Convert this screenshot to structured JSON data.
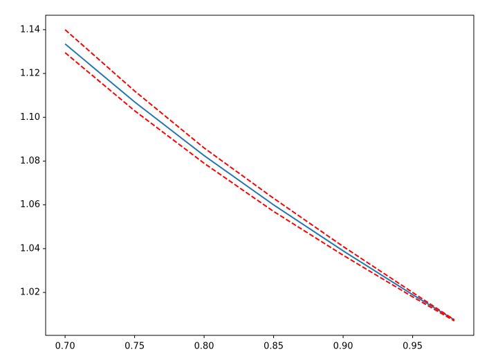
{
  "chart_data": {
    "type": "line",
    "x": [
      0.7,
      0.75,
      0.8,
      0.85,
      0.9,
      0.95,
      0.98
    ],
    "series": [
      {
        "color": "#1f77b4",
        "style": "solid",
        "values": [
          1.1335,
          1.107,
          1.0825,
          1.06,
          1.039,
          1.019,
          1.0075
        ]
      },
      {
        "color": "#ff0000",
        "style": "dashed",
        "values": [
          1.14,
          1.112,
          1.086,
          1.063,
          1.041,
          1.02,
          1.0075
        ]
      },
      {
        "color": "#ff0000",
        "style": "dashed",
        "values": [
          1.1295,
          1.103,
          1.079,
          1.057,
          1.037,
          1.018,
          1.007
        ]
      }
    ],
    "xlim": [
      0.686,
      0.994
    ],
    "xticks": [
      {
        "value": 0.7,
        "label": "0.70"
      },
      0.75,
      {
        "value": 0.8,
        "label": "0.80"
      },
      0.85,
      {
        "value": 0.9,
        "label": "0.90"
      },
      0.95
    ],
    "ylim": [
      1.0004,
      1.1466
    ],
    "yticks": [
      1.02,
      1.04,
      1.06,
      1.08,
      {
        "value": 1.1,
        "label": "1.10"
      },
      1.12,
      1.14
    ],
    "grid": false
  }
}
